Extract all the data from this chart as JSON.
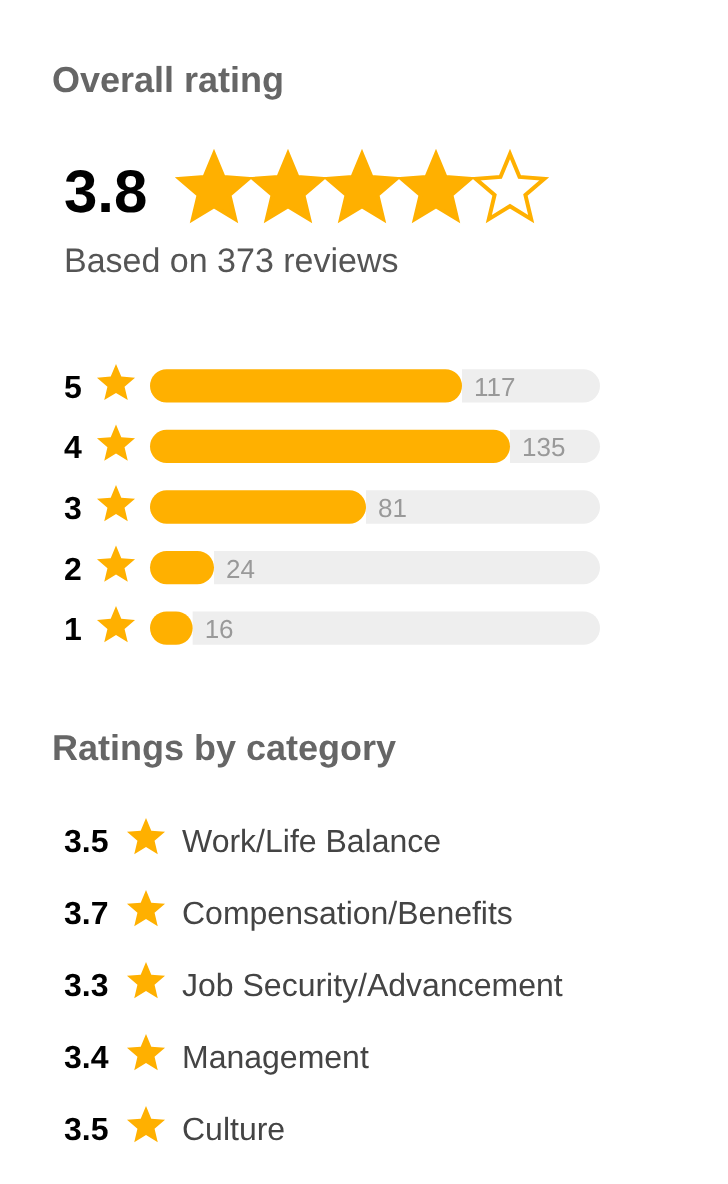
{
  "chart_data": [
    {
      "type": "bar",
      "orientation": "horizontal",
      "title": "Overall rating",
      "subtitle": "Based on 373 reviews",
      "annotations": [
        "3.8"
      ],
      "categories": [
        "5",
        "4",
        "3",
        "2",
        "1"
      ],
      "values": [
        117,
        135,
        81,
        24,
        16
      ],
      "value_labels": [
        "117",
        "135",
        "81",
        "24",
        "16"
      ],
      "color": "#ffb000",
      "tick_labels": "y"
    },
    {
      "type": "other",
      "title": "Ratings by category",
      "categories": [
        "Work/Life Balance",
        "Compensation/Benefits",
        "Job Security/Advancement",
        "Management",
        "Culture"
      ],
      "values": [
        3.5,
        3.7,
        3.3,
        3.4,
        3.5
      ],
      "data_labels": true,
      "color": "#ffb000"
    }
  ]
}
